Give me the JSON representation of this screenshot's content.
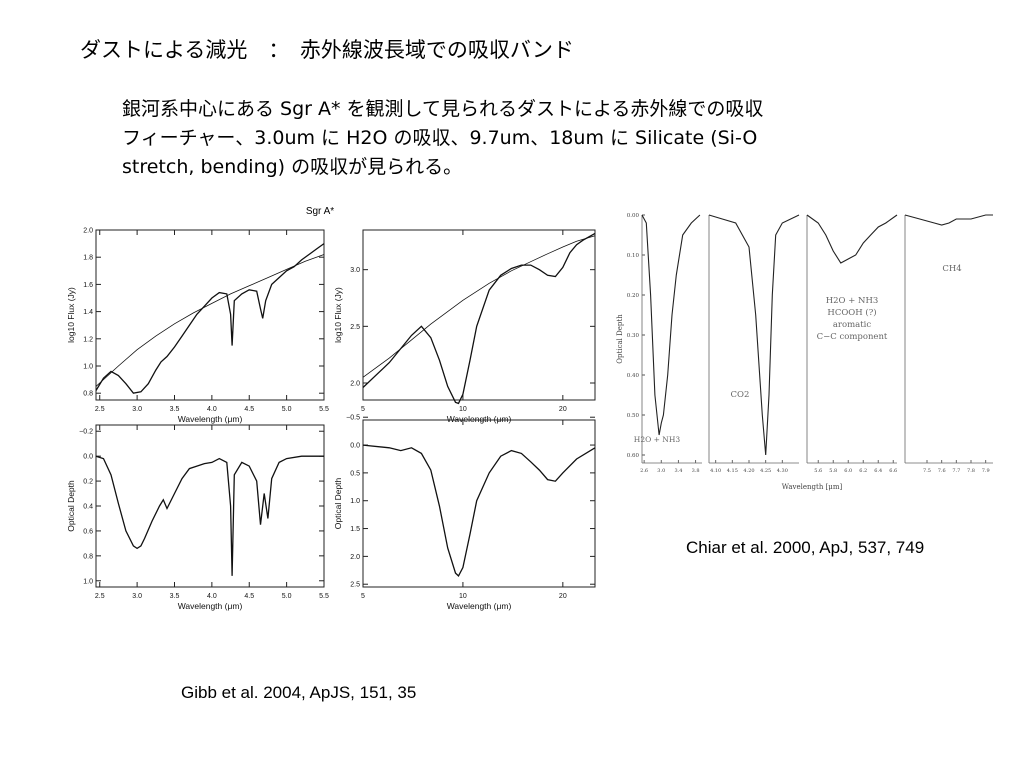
{
  "slide": {
    "title": "ダストによる減光　：　赤外線波長域での吸収バンド",
    "body_lines": [
      "銀河系中心にある Sgr A* を観測して見られるダストによる赤外線での吸収",
      "フィーチャー、3.0um に H2O の吸収、9.7um、18um に Silicate (Si-O",
      "stretch, bending) の吸収が見られる。"
    ],
    "caption_chiar": "Chiar et al. 2000, ApJ, 537, 749",
    "caption_gibb": "Gibb et al. 2004, ApJS, 151, 35"
  },
  "chart_data": [
    {
      "id": "gibb-flux-short",
      "type": "line",
      "title": "Sgr A*",
      "xlabel": "Wavelength (μm)",
      "ylabel": "log10 Flux (Jy)",
      "xlim": [
        2.45,
        5.5
      ],
      "ylim": [
        0.75,
        2.0
      ],
      "xticks": [
        "2.5",
        "3.0",
        "3.5",
        "4.0",
        "4.5",
        "5.0",
        "5.5"
      ],
      "yticks": [
        "0.8",
        "1.0",
        "1.2",
        "1.4",
        "1.6",
        "1.8",
        "2.0"
      ],
      "series": [
        {
          "role": "observed",
          "x": [
            2.45,
            2.55,
            2.65,
            2.75,
            2.85,
            2.95,
            3.05,
            3.15,
            3.25,
            3.32,
            3.4,
            3.5,
            3.6,
            3.7,
            3.8,
            3.9,
            4.0,
            4.1,
            4.2,
            4.25,
            4.27,
            4.3,
            4.4,
            4.5,
            4.6,
            4.65,
            4.68,
            4.72,
            4.8,
            4.9,
            5.0,
            5.1,
            5.2,
            5.3,
            5.4,
            5.5
          ],
          "y": [
            0.82,
            0.91,
            0.96,
            0.93,
            0.87,
            0.8,
            0.81,
            0.87,
            0.97,
            1.03,
            1.07,
            1.14,
            1.22,
            1.3,
            1.38,
            1.44,
            1.5,
            1.54,
            1.53,
            1.38,
            1.15,
            1.48,
            1.53,
            1.56,
            1.55,
            1.42,
            1.35,
            1.48,
            1.6,
            1.65,
            1.7,
            1.73,
            1.78,
            1.82,
            1.86,
            1.9
          ]
        },
        {
          "role": "continuum",
          "x": [
            2.45,
            2.75,
            3.0,
            3.25,
            3.5,
            3.75,
            4.0,
            4.25,
            4.5,
            4.75,
            5.0,
            5.25,
            5.5
          ],
          "y": [
            0.85,
            1.0,
            1.12,
            1.22,
            1.31,
            1.39,
            1.46,
            1.53,
            1.59,
            1.65,
            1.71,
            1.77,
            1.82
          ]
        }
      ]
    },
    {
      "id": "gibb-flux-long",
      "type": "line",
      "xlabel": "Wavelength (μm)",
      "ylabel": "log10 Flux (Jy)",
      "xlim": [
        5,
        25
      ],
      "ylim": [
        1.85,
        3.35
      ],
      "xticks": [
        "5",
        "10",
        "20"
      ],
      "yticks": [
        "2.0",
        "2.5",
        "3.0"
      ],
      "series": [
        {
          "role": "observed",
          "x": [
            5,
            6,
            7,
            7.5,
            8,
            8.5,
            9,
            9.5,
            9.7,
            10,
            10.5,
            11,
            12,
            13,
            14,
            15,
            16,
            17,
            18,
            19,
            20,
            21,
            22,
            23,
            25
          ],
          "y": [
            1.96,
            2.18,
            2.42,
            2.5,
            2.4,
            2.2,
            1.97,
            1.83,
            1.82,
            1.9,
            2.2,
            2.5,
            2.82,
            2.95,
            3.01,
            3.04,
            3.04,
            3.0,
            2.95,
            2.94,
            3.02,
            3.15,
            3.22,
            3.26,
            3.32
          ]
        },
        {
          "role": "continuum",
          "x": [
            5,
            6,
            7,
            8,
            9,
            10,
            12,
            14,
            16,
            18,
            20,
            22,
            25
          ],
          "y": [
            2.05,
            2.22,
            2.38,
            2.52,
            2.63,
            2.73,
            2.88,
            2.99,
            3.07,
            3.14,
            3.2,
            3.25,
            3.3
          ]
        }
      ]
    },
    {
      "id": "gibb-tau-short",
      "type": "line",
      "xlabel": "Wavelength (μm)",
      "ylabel": "Optical Depth",
      "xlim": [
        2.45,
        5.5
      ],
      "ylim": [
        -0.25,
        1.05
      ],
      "invert_y": true,
      "xticks": [
        "2.5",
        "3.0",
        "3.5",
        "4.0",
        "4.5",
        "5.0",
        "5.5"
      ],
      "yticks": [
        "−0.2",
        "0.0",
        "0.2",
        "0.4",
        "0.6",
        "0.8",
        "1.0"
      ],
      "series": [
        {
          "role": "observed",
          "x": [
            2.45,
            2.55,
            2.65,
            2.75,
            2.85,
            2.95,
            3.0,
            3.05,
            3.1,
            3.2,
            3.3,
            3.35,
            3.4,
            3.5,
            3.6,
            3.7,
            3.8,
            3.9,
            4.0,
            4.1,
            4.2,
            4.25,
            4.27,
            4.3,
            4.4,
            4.5,
            4.6,
            4.65,
            4.7,
            4.75,
            4.8,
            4.9,
            5.0,
            5.2,
            5.5
          ],
          "y": [
            0.0,
            0.02,
            0.15,
            0.38,
            0.6,
            0.72,
            0.74,
            0.72,
            0.66,
            0.52,
            0.4,
            0.35,
            0.42,
            0.3,
            0.18,
            0.1,
            0.08,
            0.06,
            0.05,
            0.02,
            0.05,
            0.4,
            0.96,
            0.15,
            0.05,
            0.08,
            0.2,
            0.55,
            0.3,
            0.5,
            0.18,
            0.05,
            0.02,
            0.0,
            0.0
          ]
        }
      ]
    },
    {
      "id": "gibb-tau-long",
      "type": "line",
      "xlabel": "Wavelength (μm)",
      "ylabel": "Optical Depth",
      "xlim": [
        5,
        25
      ],
      "ylim": [
        -0.45,
        2.55
      ],
      "invert_y": true,
      "xticks": [
        "5",
        "10",
        "20"
      ],
      "yticks": [
        "−0.5",
        "0.0",
        "0.5",
        "1.0",
        "1.5",
        "2.0",
        "2.5"
      ],
      "series": [
        {
          "role": "observed",
          "x": [
            5,
            6,
            6.5,
            7,
            7.5,
            8,
            8.5,
            9,
            9.5,
            9.7,
            10,
            10.5,
            11,
            12,
            13,
            14,
            15,
            16,
            17,
            18,
            19,
            20,
            22,
            25
          ],
          "y": [
            0.0,
            0.05,
            0.1,
            0.05,
            0.15,
            0.45,
            1.1,
            1.85,
            2.3,
            2.35,
            2.2,
            1.6,
            1.0,
            0.5,
            0.2,
            0.1,
            0.15,
            0.3,
            0.45,
            0.62,
            0.65,
            0.5,
            0.25,
            0.05
          ]
        }
      ]
    },
    {
      "id": "chiar-tau",
      "type": "line",
      "xlabel": "Wavelength [μm]",
      "ylabel": "Optical Depth",
      "ylim": [
        0.0,
        0.62
      ],
      "invert_y": true,
      "yticks": [
        "0.00",
        "0.10",
        "0.20",
        "0.30",
        "0.40",
        "0.50",
        "0.60"
      ],
      "annotations": [
        "H2O + NH3",
        "CO2",
        "H2O + NH3 and HCOOH (?) and aromatic C−C component",
        "CH4"
      ],
      "panels": [
        {
          "xlim": [
            2.55,
            3.95
          ],
          "xticks": [
            "2.6",
            "3.0",
            "3.4",
            "3.8"
          ],
          "x": [
            2.55,
            2.65,
            2.75,
            2.85,
            2.95,
            3.0,
            3.05,
            3.15,
            3.25,
            3.35,
            3.5,
            3.7,
            3.9
          ],
          "y": [
            0.0,
            0.02,
            0.2,
            0.45,
            0.55,
            0.52,
            0.5,
            0.4,
            0.25,
            0.15,
            0.05,
            0.02,
            0.0
          ]
        },
        {
          "xlim": [
            4.08,
            4.35
          ],
          "xticks": [
            "4.10",
            "4.15",
            "4.20",
            "4.25",
            "4.30"
          ],
          "x": [
            4.08,
            4.12,
            4.16,
            4.2,
            4.22,
            4.24,
            4.25,
            4.26,
            4.27,
            4.28,
            4.3,
            4.35
          ],
          "y": [
            0.0,
            0.01,
            0.02,
            0.08,
            0.25,
            0.5,
            0.6,
            0.45,
            0.2,
            0.05,
            0.02,
            0.0
          ]
        },
        {
          "xlim": [
            5.45,
            6.65
          ],
          "xticks": [
            "5.6",
            "5.8",
            "6.0",
            "6.2",
            "6.4",
            "6.6"
          ],
          "x": [
            5.45,
            5.6,
            5.7,
            5.8,
            5.9,
            6.0,
            6.1,
            6.2,
            6.3,
            6.4,
            6.5,
            6.65
          ],
          "y": [
            0.0,
            0.02,
            0.05,
            0.09,
            0.12,
            0.11,
            0.1,
            0.07,
            0.05,
            0.03,
            0.02,
            0.0
          ]
        },
        {
          "xlim": [
            7.35,
            7.95
          ],
          "xticks": [
            "7.5",
            "7.6",
            "7.7",
            "7.8",
            "7.9"
          ],
          "x": [
            7.35,
            7.45,
            7.55,
            7.6,
            7.65,
            7.7,
            7.8,
            7.9,
            7.95
          ],
          "y": [
            0.0,
            0.01,
            0.02,
            0.025,
            0.02,
            0.01,
            0.01,
            0.0,
            0.0
          ]
        }
      ]
    }
  ]
}
